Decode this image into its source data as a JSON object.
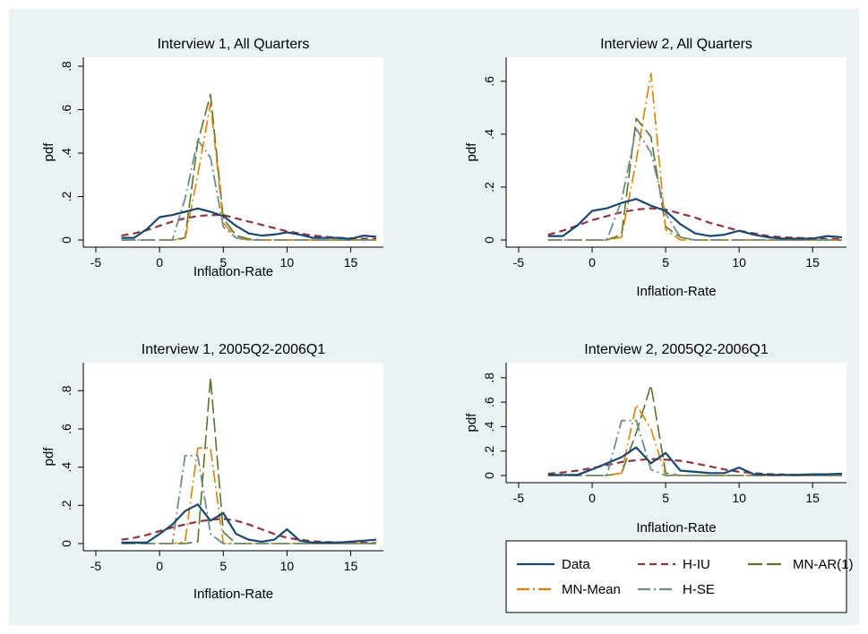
{
  "colors": {
    "background": "#eaf2f3",
    "plot_area": "#ffffff",
    "data": "#1a476f",
    "h_iu": "#90353b",
    "mn_ar1": "#55752f",
    "mn_mean": "#e37e00",
    "h_se": "#6e8e84"
  },
  "legend": {
    "items": [
      {
        "key": "data",
        "label": "Data"
      },
      {
        "key": "h_iu",
        "label": "H-IU"
      },
      {
        "key": "mn_ar1",
        "label": "MN-AR(1)"
      },
      {
        "key": "mn_mean",
        "label": "MN-Mean"
      },
      {
        "key": "h_se",
        "label": "H-SE"
      }
    ]
  },
  "chart_data": [
    {
      "type": "line",
      "title": "Interview 1, All Quarters",
      "xlabel": "Inflation-Rate",
      "ylabel": "pdf",
      "xlim": [
        -5,
        17
      ],
      "ylim": [
        0,
        0.8
      ],
      "xticks": [
        -5,
        0,
        5,
        10,
        15
      ],
      "yticks": [
        0,
        0.2,
        0.4,
        0.6,
        0.8
      ],
      "ytick_labels": [
        "0",
        ".2",
        ".4",
        ".6",
        ".8"
      ],
      "series": [
        {
          "key": "data",
          "name": "Data",
          "x": [
            -3,
            -2,
            -1,
            0,
            1,
            2,
            3,
            4,
            5,
            6,
            7,
            8,
            9,
            10,
            11,
            12,
            13,
            14,
            15,
            16,
            17
          ],
          "y": [
            0.01,
            0.01,
            0.05,
            0.105,
            0.115,
            0.13,
            0.145,
            0.13,
            0.11,
            0.065,
            0.03,
            0.02,
            0.025,
            0.035,
            0.025,
            0.01,
            0.01,
            0.01,
            0.005,
            0.02,
            0.015
          ]
        },
        {
          "key": "h_iu",
          "name": "H-IU",
          "x": [
            -3,
            -2,
            -1,
            0,
            1,
            2,
            3,
            4,
            5,
            6,
            7,
            8,
            9,
            10,
            11,
            12,
            13,
            14,
            15,
            16,
            17
          ],
          "y": [
            0.02,
            0.03,
            0.045,
            0.065,
            0.085,
            0.1,
            0.11,
            0.115,
            0.115,
            0.1,
            0.085,
            0.07,
            0.055,
            0.04,
            0.03,
            0.02,
            0.015,
            0.01,
            0.008,
            0.006,
            0.005
          ]
        },
        {
          "key": "mn_ar1",
          "name": "MN-AR(1)",
          "x": [
            -3,
            -2,
            -1,
            0,
            1,
            2,
            3,
            4,
            5,
            6,
            7,
            8,
            9,
            10,
            11,
            12,
            13,
            14,
            15,
            16,
            17
          ],
          "y": [
            0,
            0,
            0,
            0,
            0,
            0.01,
            0.45,
            0.67,
            0.1,
            0.02,
            0.005,
            0,
            0,
            0,
            0,
            0,
            0,
            0,
            0,
            0,
            0
          ]
        },
        {
          "key": "mn_mean",
          "name": "MN-Mean",
          "x": [
            -3,
            -2,
            -1,
            0,
            1,
            2,
            3,
            4,
            5,
            6,
            7,
            8,
            9,
            10,
            11,
            12,
            13,
            14,
            15,
            16,
            17
          ],
          "y": [
            0,
            0,
            0,
            0,
            0,
            0.005,
            0.3,
            0.63,
            0.08,
            0.01,
            0,
            0,
            0,
            0,
            0,
            0,
            0,
            0,
            0,
            0,
            0
          ]
        },
        {
          "key": "h_se",
          "name": "H-SE",
          "x": [
            -3,
            -2,
            -1,
            0,
            1,
            2,
            3,
            4,
            5,
            6,
            7,
            8,
            9,
            10,
            11,
            12,
            13,
            14,
            15,
            16,
            17
          ],
          "y": [
            0,
            0,
            0,
            0,
            0,
            0.19,
            0.46,
            0.38,
            0.06,
            0.01,
            0,
            0,
            0,
            0,
            0,
            0,
            0,
            0,
            0,
            0,
            0
          ]
        }
      ]
    },
    {
      "type": "line",
      "title": "Interview 2, All Quarters",
      "xlabel": "Inflation-Rate",
      "ylabel": "pdf",
      "xlim": [
        -5,
        17
      ],
      "ylim": [
        0,
        0.65
      ],
      "xticks": [
        -5,
        0,
        5,
        10,
        15
      ],
      "yticks": [
        0,
        0.2,
        0.4,
        0.6
      ],
      "ytick_labels": [
        "0",
        ".2",
        ".4",
        ".6"
      ],
      "series": [
        {
          "key": "data",
          "name": "Data",
          "x": [
            -3,
            -2,
            -1,
            0,
            1,
            2,
            3,
            4,
            5,
            6,
            7,
            8,
            9,
            10,
            11,
            12,
            13,
            14,
            15,
            16,
            17
          ],
          "y": [
            0.015,
            0.015,
            0.055,
            0.11,
            0.12,
            0.14,
            0.155,
            0.13,
            0.11,
            0.06,
            0.025,
            0.015,
            0.02,
            0.035,
            0.02,
            0.01,
            0.005,
            0.005,
            0.005,
            0.015,
            0.01
          ]
        },
        {
          "key": "h_iu",
          "name": "H-IU",
          "x": [
            -3,
            -2,
            -1,
            0,
            1,
            2,
            3,
            4,
            5,
            6,
            7,
            8,
            9,
            10,
            11,
            12,
            13,
            14,
            15,
            16,
            17
          ],
          "y": [
            0.02,
            0.035,
            0.055,
            0.075,
            0.09,
            0.105,
            0.115,
            0.12,
            0.115,
            0.1,
            0.085,
            0.065,
            0.05,
            0.035,
            0.025,
            0.015,
            0.01,
            0.008,
            0.006,
            0.004,
            0.003
          ]
        },
        {
          "key": "mn_ar1",
          "name": "MN-AR(1)",
          "x": [
            -3,
            -2,
            -1,
            0,
            1,
            2,
            3,
            4,
            5,
            6,
            7,
            8,
            9,
            10,
            11,
            12,
            13,
            14,
            15,
            16,
            17
          ],
          "y": [
            0,
            0,
            0,
            0,
            0,
            0.02,
            0.46,
            0.39,
            0.05,
            0.01,
            0,
            0,
            0,
            0,
            0,
            0,
            0,
            0,
            0,
            0,
            0
          ]
        },
        {
          "key": "mn_mean",
          "name": "MN-Mean",
          "x": [
            -3,
            -2,
            -1,
            0,
            1,
            2,
            3,
            4,
            5,
            6,
            7,
            8,
            9,
            10,
            11,
            12,
            13,
            14,
            15,
            16,
            17
          ],
          "y": [
            0,
            0,
            0,
            0,
            0,
            0.01,
            0.3,
            0.63,
            0.04,
            0,
            0,
            0,
            0,
            0,
            0,
            0,
            0,
            0,
            0,
            0,
            0
          ]
        },
        {
          "key": "h_se",
          "name": "H-SE",
          "x": [
            -3,
            -2,
            -1,
            0,
            1,
            2,
            3,
            4,
            5,
            6,
            7,
            8,
            9,
            10,
            11,
            12,
            13,
            14,
            15,
            16,
            17
          ],
          "y": [
            0,
            0,
            0,
            0,
            0,
            0.15,
            0.42,
            0.33,
            0.1,
            0.01,
            0,
            0,
            0,
            0,
            0,
            0,
            0,
            0,
            0,
            0,
            0
          ]
        }
      ]
    },
    {
      "type": "line",
      "title": "Interview 1, 2005Q2-2006Q1",
      "xlabel": "Inflation-Rate",
      "ylabel": "pdf",
      "xlim": [
        -5,
        17
      ],
      "ylim": [
        0,
        0.9
      ],
      "xticks": [
        -5,
        0,
        5,
        10,
        15
      ],
      "yticks": [
        0,
        0.2,
        0.4,
        0.6,
        0.8
      ],
      "ytick_labels": [
        "0",
        ".2",
        ".4",
        ".6",
        ".8"
      ],
      "series": [
        {
          "key": "data",
          "name": "Data",
          "x": [
            -3,
            -2,
            -1,
            0,
            1,
            2,
            3,
            4,
            5,
            6,
            7,
            8,
            9,
            10,
            11,
            12,
            13,
            14,
            15,
            16,
            17
          ],
          "y": [
            0.005,
            0.005,
            0.005,
            0.05,
            0.1,
            0.17,
            0.205,
            0.12,
            0.16,
            0.05,
            0.02,
            0.01,
            0.02,
            0.075,
            0.015,
            0.005,
            0.005,
            0.005,
            0.01,
            0.015,
            0.02
          ]
        },
        {
          "key": "h_iu",
          "name": "H-IU",
          "x": [
            -3,
            -2,
            -1,
            0,
            1,
            2,
            3,
            4,
            5,
            6,
            7,
            8,
            9,
            10,
            11,
            12,
            13,
            14,
            15,
            16,
            17
          ],
          "y": [
            0.02,
            0.03,
            0.045,
            0.065,
            0.085,
            0.1,
            0.115,
            0.125,
            0.13,
            0.12,
            0.1,
            0.075,
            0.05,
            0.03,
            0.02,
            0.012,
            0.008,
            0.006,
            0.005,
            0.004,
            0.003
          ]
        },
        {
          "key": "mn_ar1",
          "name": "MN-AR(1)",
          "x": [
            -3,
            -2,
            -1,
            0,
            1,
            2,
            3,
            4,
            5,
            6,
            7,
            8,
            9,
            10,
            11,
            12,
            13,
            14,
            15,
            16,
            17
          ],
          "y": [
            0,
            0,
            0,
            0,
            0,
            0,
            0.01,
            0.87,
            0.06,
            0,
            0,
            0,
            0,
            0,
            0,
            0,
            0,
            0,
            0,
            0,
            0
          ]
        },
        {
          "key": "mn_mean",
          "name": "MN-Mean",
          "x": [
            -3,
            -2,
            -1,
            0,
            1,
            2,
            3,
            4,
            5,
            6,
            7,
            8,
            9,
            10,
            11,
            12,
            13,
            14,
            15,
            16,
            17
          ],
          "y": [
            0,
            0,
            0,
            0,
            0,
            0.01,
            0.5,
            0.5,
            0,
            0,
            0,
            0,
            0,
            0,
            0,
            0,
            0,
            0,
            0,
            0,
            0
          ]
        },
        {
          "key": "h_se",
          "name": "H-SE",
          "x": [
            -3,
            -2,
            -1,
            0,
            1,
            2,
            3,
            4,
            5,
            6,
            7,
            8,
            9,
            10,
            11,
            12,
            13,
            14,
            15,
            16,
            17
          ],
          "y": [
            0,
            0,
            0,
            0,
            0,
            0.46,
            0.46,
            0.05,
            0,
            0,
            0,
            0,
            0,
            0,
            0,
            0,
            0,
            0,
            0,
            0,
            0
          ]
        }
      ]
    },
    {
      "type": "line",
      "title": "Interview 2, 2005Q2-2006Q1",
      "xlabel": "Inflation-Rate",
      "ylabel": "pdf",
      "xlim": [
        -5,
        17
      ],
      "ylim": [
        0,
        0.85
      ],
      "xticks": [
        -5,
        0,
        5,
        10,
        15
      ],
      "yticks": [
        0,
        0.2,
        0.4,
        0.6,
        0.8
      ],
      "ytick_labels": [
        "0",
        ".2",
        ".4",
        ".6",
        ".8"
      ],
      "series": [
        {
          "key": "data",
          "name": "Data",
          "x": [
            -3,
            -2,
            -1,
            0,
            1,
            2,
            3,
            4,
            5,
            6,
            7,
            8,
            9,
            10,
            11,
            12,
            13,
            14,
            15,
            16,
            17
          ],
          "y": [
            0.005,
            0.005,
            0.005,
            0.05,
            0.1,
            0.15,
            0.23,
            0.1,
            0.185,
            0.04,
            0.03,
            0.02,
            0.02,
            0.065,
            0.01,
            0.005,
            0.005,
            0.005,
            0.01,
            0.01,
            0.015
          ]
        },
        {
          "key": "h_iu",
          "name": "H-IU",
          "x": [
            -3,
            -2,
            -1,
            0,
            1,
            2,
            3,
            4,
            5,
            6,
            7,
            8,
            9,
            10,
            11,
            12,
            13,
            14,
            15,
            16,
            17
          ],
          "y": [
            0.015,
            0.025,
            0.04,
            0.06,
            0.085,
            0.11,
            0.125,
            0.135,
            0.13,
            0.12,
            0.1,
            0.075,
            0.05,
            0.03,
            0.02,
            0.012,
            0.008,
            0.005,
            0.004,
            0.003,
            0.002
          ]
        },
        {
          "key": "mn_ar1",
          "name": "MN-AR(1)",
          "x": [
            -3,
            -2,
            -1,
            0,
            1,
            2,
            3,
            4,
            5,
            6,
            7,
            8,
            9,
            10,
            11,
            12,
            13,
            14,
            15,
            16,
            17
          ],
          "y": [
            0,
            0,
            0,
            0,
            0,
            0.02,
            0.35,
            0.74,
            0.02,
            0,
            0,
            0,
            0,
            0,
            0,
            0,
            0,
            0,
            0,
            0,
            0
          ]
        },
        {
          "key": "mn_mean",
          "name": "MN-Mean",
          "x": [
            -3,
            -2,
            -1,
            0,
            1,
            2,
            3,
            4,
            5,
            6,
            7,
            8,
            9,
            10,
            11,
            12,
            13,
            14,
            15,
            16,
            17
          ],
          "y": [
            0,
            0,
            0,
            0,
            0,
            0.02,
            0.58,
            0.38,
            0,
            0,
            0,
            0,
            0,
            0,
            0,
            0,
            0,
            0,
            0,
            0,
            0
          ]
        },
        {
          "key": "h_se",
          "name": "H-SE",
          "x": [
            -3,
            -2,
            -1,
            0,
            1,
            2,
            3,
            4,
            5,
            6,
            7,
            8,
            9,
            10,
            11,
            12,
            13,
            14,
            15,
            16,
            17
          ],
          "y": [
            0,
            0,
            0,
            0,
            0,
            0.45,
            0.45,
            0.05,
            0,
            0,
            0,
            0,
            0,
            0,
            0,
            0,
            0,
            0,
            0,
            0,
            0
          ]
        }
      ]
    }
  ]
}
